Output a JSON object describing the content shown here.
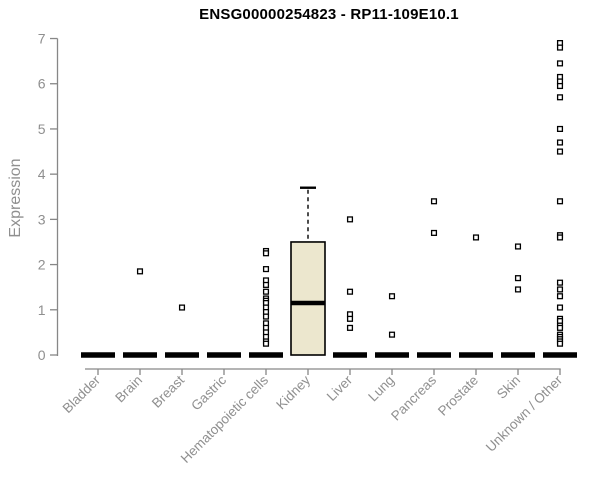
{
  "chart_data": {
    "type": "boxplot",
    "title": "ENSG00000254823 - RP11-109E10.1",
    "ylabel": "Expression",
    "xlabel": "",
    "ylim": [
      0,
      7
    ],
    "yticks": [
      0,
      1,
      2,
      3,
      4,
      5,
      6,
      7
    ],
    "grid": "off",
    "legend": "none",
    "point_shape": "open-square",
    "colors": {
      "box_fill": "#ece7ce",
      "box_stroke": "#000000",
      "median_color": "#000000",
      "axis_color": "#878787",
      "tick_label_color": "#8f8f8f",
      "title_color": "#000000",
      "background": "#ffffff"
    },
    "categories": [
      "Bladder",
      "Brain",
      "Breast",
      "Gastric",
      "Hematopoietic cells",
      "Kidney",
      "Liver",
      "Lung",
      "Pancreas",
      "Prostate",
      "Skin",
      "Unknown / Other"
    ],
    "boxes": [
      {
        "category": "Bladder",
        "lo": 0,
        "q1": 0,
        "median": 0,
        "q3": 0,
        "hi": 0,
        "outliers": []
      },
      {
        "category": "Brain",
        "lo": 0,
        "q1": 0,
        "median": 0,
        "q3": 0,
        "hi": 0,
        "outliers": [
          1.85
        ]
      },
      {
        "category": "Breast",
        "lo": 0,
        "q1": 0,
        "median": 0,
        "q3": 0,
        "hi": 0,
        "outliers": [
          1.05
        ]
      },
      {
        "category": "Gastric",
        "lo": 0,
        "q1": 0,
        "median": 0,
        "q3": 0,
        "hi": 0,
        "outliers": []
      },
      {
        "category": "Hematopoietic cells",
        "lo": 0,
        "q1": 0,
        "median": 0,
        "q3": 0,
        "hi": 0,
        "outliers": [
          2.3,
          2.25,
          1.9,
          1.65,
          1.55,
          1.4,
          1.25,
          1.2,
          1.15,
          1.05,
          0.95,
          0.85,
          0.7,
          0.6,
          0.5,
          0.4,
          0.3,
          0.25
        ]
      },
      {
        "category": "Kidney",
        "lo": 0,
        "q1": 0,
        "median": 1.15,
        "q3": 2.5,
        "hi": 3.7,
        "outliers": []
      },
      {
        "category": "Liver",
        "lo": 0,
        "q1": 0,
        "median": 0,
        "q3": 0,
        "hi": 0,
        "outliers": [
          3.0,
          1.4,
          0.9,
          0.8,
          0.6
        ]
      },
      {
        "category": "Lung",
        "lo": 0,
        "q1": 0,
        "median": 0,
        "q3": 0,
        "hi": 0,
        "outliers": [
          1.3,
          0.45
        ]
      },
      {
        "category": "Pancreas",
        "lo": 0,
        "q1": 0,
        "median": 0,
        "q3": 0,
        "hi": 0,
        "outliers": [
          3.4,
          2.7
        ]
      },
      {
        "category": "Prostate",
        "lo": 0,
        "q1": 0,
        "median": 0,
        "q3": 0,
        "hi": 0,
        "outliers": [
          2.6
        ]
      },
      {
        "category": "Skin",
        "lo": 0,
        "q1": 0,
        "median": 0,
        "q3": 0,
        "hi": 0,
        "outliers": [
          2.4,
          1.7,
          1.45
        ]
      },
      {
        "category": "Unknown / Other",
        "lo": 0,
        "q1": 0,
        "median": 0,
        "q3": 0,
        "hi": 0,
        "outliers": [
          6.9,
          6.8,
          6.45,
          6.15,
          6.05,
          5.95,
          5.7,
          5.0,
          4.7,
          4.5,
          3.4,
          2.65,
          2.6,
          1.6,
          1.45,
          1.3,
          1.05,
          0.8,
          0.75,
          0.65,
          0.6,
          0.45,
          0.4,
          0.35,
          0.3,
          0.25
        ]
      }
    ]
  }
}
